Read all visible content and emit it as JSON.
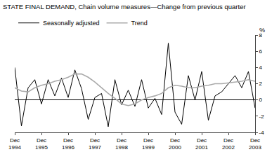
{
  "chart_data": {
    "type": "line",
    "title": "STATE FINAL DEMAND, Chain volume measures—Change from previous quarter",
    "ylabel": "%",
    "categories": [
      "Dec\n1994",
      null,
      null,
      null,
      "Dec\n1995",
      null,
      null,
      null,
      "Dec\n1996",
      null,
      null,
      null,
      "Dec\n1997",
      null,
      null,
      null,
      "Dec\n1998",
      null,
      null,
      null,
      "Dec\n1999",
      null,
      null,
      null,
      "Dec\n2000",
      null,
      null,
      null,
      "Dec\n2001",
      null,
      null,
      null,
      "Dec\n2002",
      null,
      null,
      null,
      "Dec\n2003"
    ],
    "series": [
      {
        "name": "Seasonally adjusted",
        "color": "#000000",
        "values": [
          4.0,
          -3.2,
          1.5,
          2.5,
          -0.5,
          2.5,
          0.5,
          2.7,
          0.3,
          3.7,
          1.4,
          -2.4,
          0.3,
          0.8,
          -3.3,
          2.5,
          -0.6,
          1.2,
          -0.8,
          2.5,
          -1.0,
          0.2,
          -1.8,
          7.0,
          -1.5,
          -3.0,
          3.0,
          0.0,
          3.5,
          -2.5,
          0.5,
          1.0,
          2.0,
          3.0,
          1.5,
          3.5,
          -1.0
        ]
      },
      {
        "name": "Trend",
        "color": "#aaaaaa",
        "values": [
          1.5,
          1.1,
          1.0,
          1.5,
          1.8,
          2.0,
          2.3,
          2.5,
          2.8,
          3.2,
          3.2,
          2.8,
          2.2,
          1.5,
          0.8,
          0.2,
          -0.5,
          -0.7,
          -0.5,
          0.0,
          0.3,
          0.5,
          0.8,
          1.5,
          1.8,
          1.7,
          1.5,
          1.5,
          1.7,
          1.8,
          2.0,
          2.0,
          2.1,
          2.2,
          2.3,
          2.5,
          2.3
        ]
      }
    ],
    "ylim": [
      -4,
      8
    ],
    "yticks": [
      -4,
      -2,
      0,
      2,
      4,
      6,
      8
    ],
    "grid": false,
    "legend": "upper left"
  }
}
